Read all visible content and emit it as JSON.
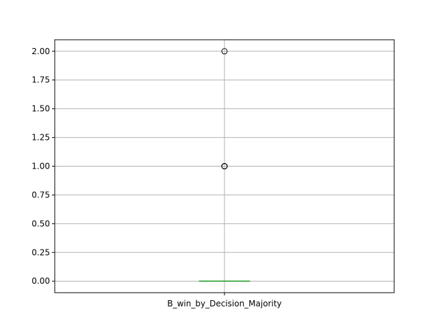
{
  "chart_data": {
    "type": "box",
    "title": "",
    "xlabel": "",
    "ylabel": "",
    "categories": [
      "B_win_by_Decision_Majority"
    ],
    "box": {
      "q1": 0.0,
      "median": 0.0,
      "q3": 0.0,
      "whisker_low": 0.0,
      "whisker_high": 0.0,
      "outliers": [
        1.0,
        1.0,
        1.0,
        1.0,
        2.0
      ]
    },
    "ylim": [
      -0.1,
      2.1
    ],
    "yticks": [
      0.0,
      0.25,
      0.5,
      0.75,
      1.0,
      1.25,
      1.5,
      1.75,
      2.0
    ],
    "ytick_labels": [
      "0.00",
      "0.25",
      "0.50",
      "0.75",
      "1.00",
      "1.25",
      "1.50",
      "1.75",
      "2.00"
    ],
    "grid": true,
    "colors": {
      "median": "#2ca02c",
      "box": "#1f77b4",
      "grid": "#b0b0b0",
      "outlier": "#000000"
    }
  }
}
